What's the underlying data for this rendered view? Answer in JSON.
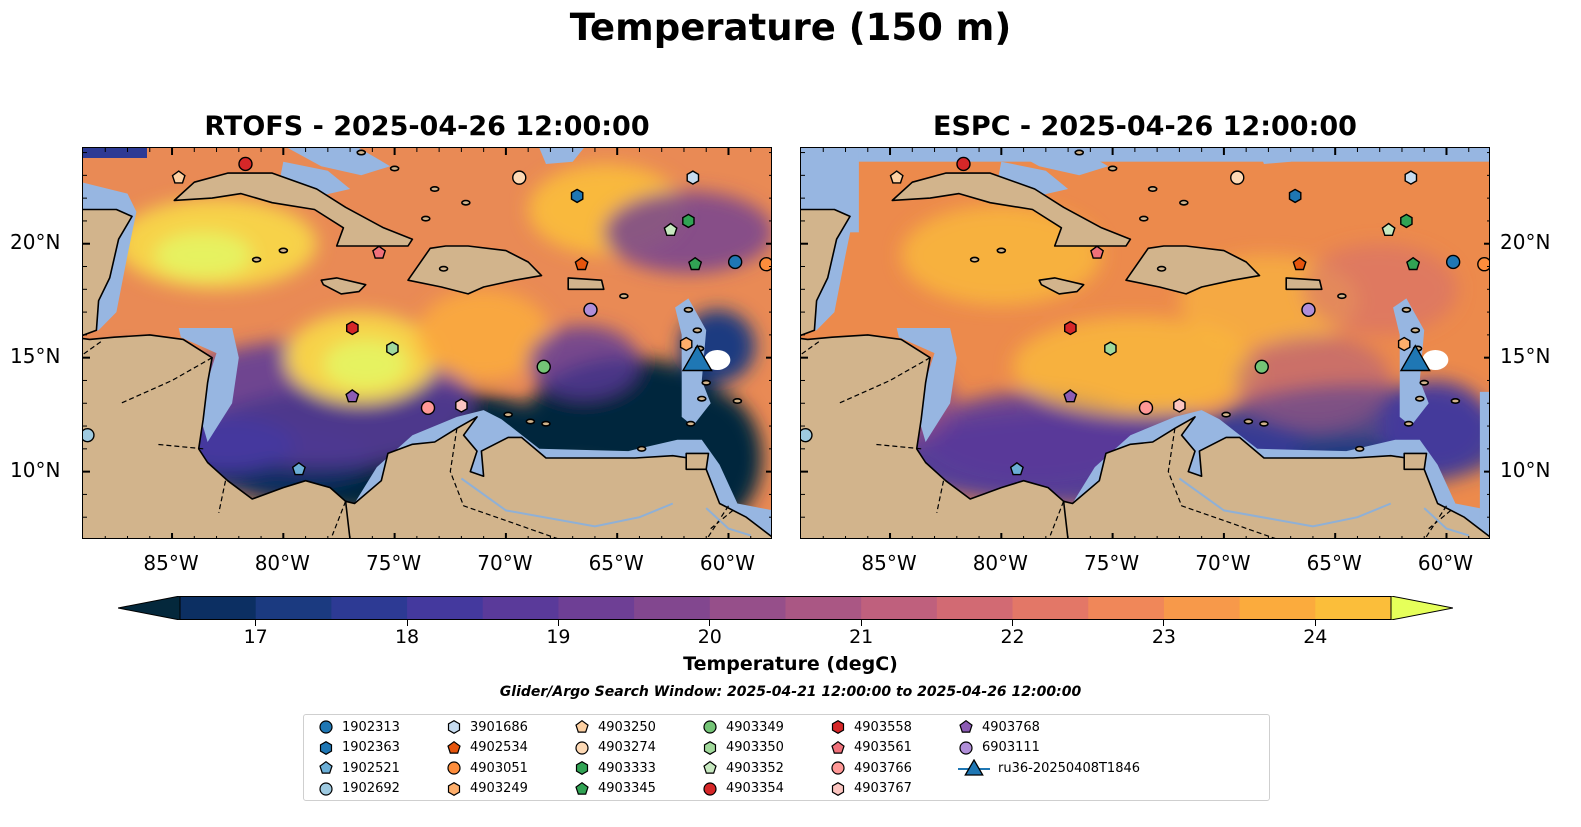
{
  "figure_title": "Temperature (150 m)",
  "panels": [
    {
      "title": "RTOFS - 2025-04-26 12:00:00",
      "model": "RTOFS"
    },
    {
      "title": "ESPC - 2025-04-26 12:00:00",
      "model": "ESPC"
    }
  ],
  "lon_labels": [
    "85°W",
    "80°W",
    "75°W",
    "70°W",
    "65°W",
    "60°W"
  ],
  "lat_labels": [
    "20°N",
    "15°N",
    "10°N"
  ],
  "colorbar": {
    "label": "Temperature (degC)",
    "ticks": [
      "17",
      "18",
      "19",
      "20",
      "21",
      "22",
      "23",
      "24"
    ],
    "min": 16.5,
    "max": 24.5,
    "step": 0.5,
    "colors": [
      "#04283c",
      "#0c2f62",
      "#1b3a80",
      "#2d3a94",
      "#44399e",
      "#5a3a9a",
      "#6e3f95",
      "#82478f",
      "#964f8a",
      "#aa5784",
      "#bf607d",
      "#d26a73",
      "#e37767",
      "#f08759",
      "#f7994a",
      "#fbab3d",
      "#fbbe3a",
      "#f7d24a",
      "#e6f260"
    ],
    "under_color": "#04283c",
    "over_color": "#e6ff5a"
  },
  "search_window": "Glider/Argo Search Window: 2025-04-21 12:00:00 to 2025-04-26 12:00:00",
  "map_colors": {
    "land": "#d2b48c",
    "ocean_shallow": "#97b6e1",
    "deep_cold": "#04283c",
    "warm": "#f28b45",
    "hot": "#f6cf4c"
  },
  "legend": [
    {
      "label": "1902313",
      "shape": "circle",
      "color": "#1f77b4"
    },
    {
      "label": "1902363",
      "shape": "hexagon",
      "color": "#1f77b4"
    },
    {
      "label": "1902521",
      "shape": "pentagon",
      "color": "#6baed6"
    },
    {
      "label": "1902692",
      "shape": "circle",
      "color": "#9ecae1"
    },
    {
      "label": "3901686",
      "shape": "hexagon",
      "color": "#c6dbef"
    },
    {
      "label": "4902534",
      "shape": "pentagon",
      "color": "#e6550d"
    },
    {
      "label": "4903051",
      "shape": "circle",
      "color": "#fd8d3c"
    },
    {
      "label": "4903249",
      "shape": "hexagon",
      "color": "#fdae6b"
    },
    {
      "label": "4903250",
      "shape": "pentagon",
      "color": "#fdd0a2"
    },
    {
      "label": "4903274",
      "shape": "circle",
      "color": "#fdd9b5"
    },
    {
      "label": "4903333",
      "shape": "hexagon",
      "color": "#31a354"
    },
    {
      "label": "4903345",
      "shape": "pentagon",
      "color": "#31a354"
    },
    {
      "label": "4903349",
      "shape": "circle",
      "color": "#74c476"
    },
    {
      "label": "4903350",
      "shape": "hexagon",
      "color": "#a1d99b"
    },
    {
      "label": "4903352",
      "shape": "pentagon",
      "color": "#c7e9c0"
    },
    {
      "label": "4903354",
      "shape": "circle",
      "color": "#d62728"
    },
    {
      "label": "4903558",
      "shape": "hexagon",
      "color": "#d62728"
    },
    {
      "label": "4903561",
      "shape": "pentagon",
      "color": "#f0717a"
    },
    {
      "label": "4903766",
      "shape": "circle",
      "color": "#ff9896"
    },
    {
      "label": "4903767",
      "shape": "hexagon",
      "color": "#fcc5c0"
    },
    {
      "label": "4903768",
      "shape": "pentagon",
      "color": "#8c5cb4"
    },
    {
      "label": "6903111",
      "shape": "circle",
      "color": "#b08ed8"
    },
    {
      "label": "ru36-20250408T1846",
      "shape": "triangle",
      "color": "#1f77b4"
    }
  ],
  "floats": [
    {
      "id": "1902313",
      "lon": -59.7,
      "lat": 19.2
    },
    {
      "id": "1902363",
      "lon": -66.8,
      "lat": 22.1
    },
    {
      "id": "1902521",
      "lon": -79.3,
      "lat": 10.1
    },
    {
      "id": "1902692",
      "lon": -88.8,
      "lat": 11.6
    },
    {
      "id": "3901686",
      "lon": -61.6,
      "lat": 22.9
    },
    {
      "id": "4902534",
      "lon": -66.6,
      "lat": 19.1
    },
    {
      "id": "4903051",
      "lon": -58.3,
      "lat": 19.1
    },
    {
      "id": "4903249",
      "lon": -61.9,
      "lat": 15.6
    },
    {
      "id": "4903250",
      "lon": -84.7,
      "lat": 22.9
    },
    {
      "id": "4903274",
      "lon": -69.4,
      "lat": 22.9
    },
    {
      "id": "4903333",
      "lon": -61.8,
      "lat": 21.0
    },
    {
      "id": "4903345",
      "lon": -61.5,
      "lat": 19.1
    },
    {
      "id": "4903349",
      "lon": -68.3,
      "lat": 14.6
    },
    {
      "id": "4903350",
      "lon": -75.1,
      "lat": 15.4
    },
    {
      "id": "4903352",
      "lon": -62.6,
      "lat": 20.6
    },
    {
      "id": "4903354",
      "lon": -81.7,
      "lat": 23.5
    },
    {
      "id": "4903558",
      "lon": -76.9,
      "lat": 16.3
    },
    {
      "id": "4903561",
      "lon": -75.7,
      "lat": 19.6
    },
    {
      "id": "4903766",
      "lon": -73.5,
      "lat": 12.8
    },
    {
      "id": "4903767",
      "lon": -72.0,
      "lat": 12.9
    },
    {
      "id": "4903768",
      "lon": -76.9,
      "lat": 13.3
    },
    {
      "id": "6903111",
      "lon": -66.2,
      "lat": 17.1
    },
    {
      "id": "ru36-20250408T1846",
      "lon": -61.4,
      "lat": 14.8
    }
  ]
}
